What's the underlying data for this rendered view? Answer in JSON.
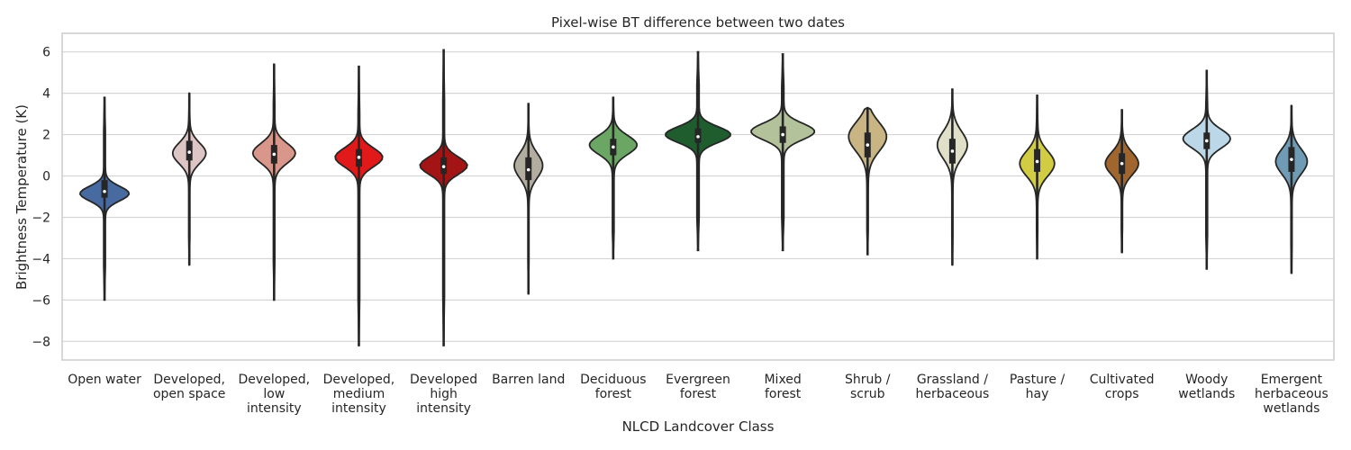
{
  "chart_data": {
    "type": "violin",
    "title": "Pixel-wise BT difference between two dates",
    "xlabel": "NLCD Landcover Class",
    "ylabel": "Brightness Temperature (K)",
    "ylim": [
      -8.9,
      6.9
    ],
    "yticks": [
      6,
      4,
      2,
      0,
      -2,
      -4,
      -6,
      -8
    ],
    "ytick_labels": [
      "6",
      "4",
      "2",
      "0",
      "−2",
      "−4",
      "−6",
      "−8"
    ],
    "grid": true,
    "categories": [
      {
        "label": [
          "Open water"
        ],
        "color": "#476ba1",
        "min": -6.0,
        "q1": -1.05,
        "median": -0.75,
        "q3": -0.2,
        "max": 3.8,
        "mode": -0.85,
        "spread": 0.35,
        "width": 0.62
      },
      {
        "label": [
          "Developed,",
          "open space"
        ],
        "color": "#dec5c5",
        "min": -4.3,
        "q1": 0.75,
        "median": 1.15,
        "q3": 1.7,
        "max": 4.0,
        "mode": 1.1,
        "spread": 0.5,
        "width": 0.42
      },
      {
        "label": [
          "Developed,",
          "low",
          "intensity"
        ],
        "color": "#d9968a",
        "min": -6.0,
        "q1": 0.6,
        "median": 1.05,
        "q3": 1.5,
        "max": 5.4,
        "mode": 1.1,
        "spread": 0.48,
        "width": 0.54
      },
      {
        "label": [
          "Developed,",
          "medium",
          "intensity"
        ],
        "color": "#e01a1a",
        "min": -8.2,
        "q1": 0.45,
        "median": 0.9,
        "q3": 1.3,
        "max": 5.3,
        "mode": 0.9,
        "spread": 0.45,
        "width": 0.6
      },
      {
        "label": [
          "Developed",
          "high",
          "intensity"
        ],
        "color": "#a31515",
        "min": -8.2,
        "q1": 0.1,
        "median": 0.45,
        "q3": 0.9,
        "max": 6.1,
        "mode": 0.5,
        "spread": 0.42,
        "width": 0.6
      },
      {
        "label": [
          "Barren land"
        ],
        "color": "#b3ad9f",
        "min": -5.7,
        "q1": -0.2,
        "median": 0.3,
        "q3": 0.9,
        "max": 3.5,
        "mode": 0.5,
        "spread": 0.6,
        "width": 0.36
      },
      {
        "label": [
          "Deciduous",
          "forest"
        ],
        "color": "#6ba664",
        "min": -4.0,
        "q1": 1.0,
        "median": 1.4,
        "q3": 1.8,
        "max": 3.8,
        "mode": 1.5,
        "spread": 0.45,
        "width": 0.6
      },
      {
        "label": [
          "Evergreen",
          "forest"
        ],
        "color": "#1f5c2e",
        "min": -3.6,
        "q1": 1.6,
        "median": 1.9,
        "q3": 2.3,
        "max": 6.0,
        "mode": 2.0,
        "spread": 0.38,
        "width": 0.82
      },
      {
        "label": [
          "Mixed",
          "forest"
        ],
        "color": "#b3c29b",
        "min": -3.6,
        "q1": 1.6,
        "median": 2.0,
        "q3": 2.4,
        "max": 5.9,
        "mode": 2.15,
        "spread": 0.4,
        "width": 0.8
      },
      {
        "label": [
          "Shrub /",
          "scrub"
        ],
        "color": "#c8b583",
        "min": -3.8,
        "q1": 0.9,
        "median": 1.5,
        "q3": 2.1,
        "max": 3.3,
        "mode": 1.9,
        "spread": 0.7,
        "width": 0.48
      },
      {
        "label": [
          "Grassland /",
          "herbaceous"
        ],
        "color": "#e0e0c8",
        "min": -4.3,
        "q1": 0.6,
        "median": 1.2,
        "q3": 1.8,
        "max": 4.2,
        "mode": 1.5,
        "spread": 0.65,
        "width": 0.38
      },
      {
        "label": [
          "Pasture /",
          "hay"
        ],
        "color": "#d1cc42",
        "min": -4.0,
        "q1": 0.2,
        "median": 0.7,
        "q3": 1.3,
        "max": 3.9,
        "mode": 0.6,
        "spread": 0.6,
        "width": 0.44
      },
      {
        "label": [
          "Cultivated",
          "crops"
        ],
        "color": "#a1662e",
        "min": -3.7,
        "q1": 0.1,
        "median": 0.6,
        "q3": 1.1,
        "max": 3.2,
        "mode": 0.6,
        "spread": 0.55,
        "width": 0.42
      },
      {
        "label": [
          "Woody",
          "wetlands"
        ],
        "color": "#bcd8e8",
        "min": -4.5,
        "q1": 1.3,
        "median": 1.7,
        "q3": 2.1,
        "max": 5.1,
        "mode": 1.8,
        "spread": 0.45,
        "width": 0.6
      },
      {
        "label": [
          "Emergent",
          "herbaceous",
          "wetlands"
        ],
        "color": "#6f9bb5",
        "min": -4.7,
        "q1": 0.2,
        "median": 0.8,
        "q3": 1.4,
        "max": 3.4,
        "mode": 0.7,
        "spread": 0.6,
        "width": 0.4
      }
    ]
  }
}
